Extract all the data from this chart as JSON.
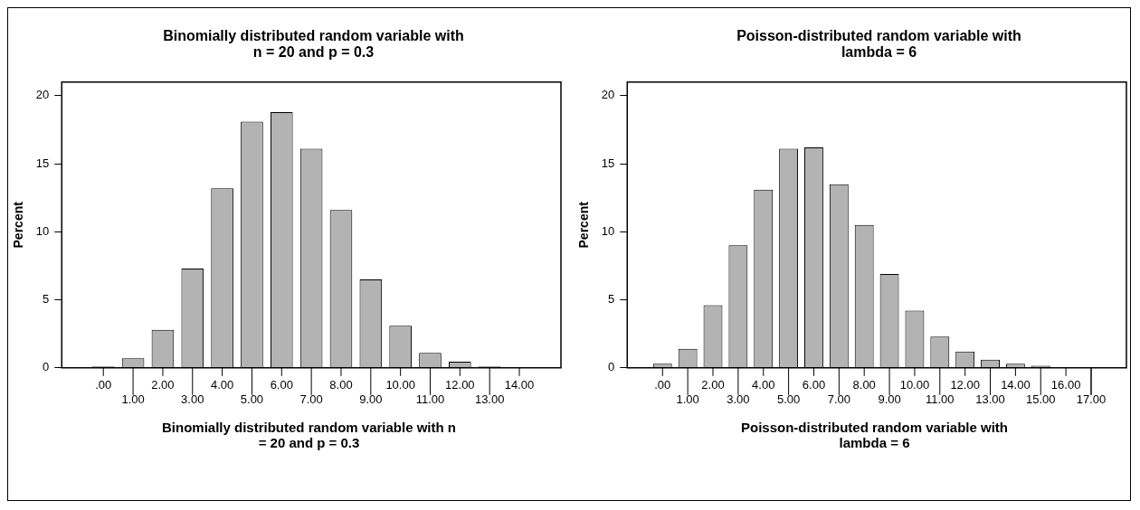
{
  "chart_data": [
    {
      "type": "bar",
      "title": "Binomially distributed random variable with n = 20 and p = 0.3",
      "xlabel": "Binomially distributed random variable with n = 20 and p = 0.3",
      "ylabel": "Percent",
      "categories": [
        ".00",
        "1.00",
        "2.00",
        "3.00",
        "4.00",
        "5.00",
        "6.00",
        "7.00",
        "8.00",
        "9.00",
        "10.00",
        "11.00",
        "12.00",
        "13.00",
        "14.00"
      ],
      "values": [
        0.1,
        0.7,
        2.8,
        7.3,
        13.2,
        18.1,
        18.8,
        16.1,
        11.6,
        6.5,
        3.1,
        1.1,
        0.45,
        0.1,
        0
      ],
      "color": "#b3b3b3",
      "ylim": [
        0,
        21
      ],
      "yticks": [
        0,
        5,
        10,
        15,
        20
      ],
      "grid": false
    },
    {
      "type": "bar",
      "title": "Poisson-distributed random variable with lambda = 6",
      "xlabel": "Poisson-distributed random variable with lambda = 6",
      "ylabel": "Percent",
      "categories": [
        ".00",
        "1.00",
        "2.00",
        "3.00",
        "4.00",
        "5.00",
        "6.00",
        "7.00",
        "8.00",
        "9.00",
        "10.00",
        "11.00",
        "12.00",
        "13.00",
        "14.00",
        "15.00",
        "16.00",
        "17.00"
      ],
      "values": [
        0.3,
        1.4,
        4.6,
        9.0,
        13.1,
        16.1,
        16.2,
        13.5,
        10.5,
        6.9,
        4.2,
        2.3,
        1.2,
        0.6,
        0.3,
        0.15,
        0.05,
        0
      ],
      "color": "#b3b3b3",
      "ylim": [
        0,
        21
      ],
      "yticks": [
        0,
        5,
        10,
        15,
        20
      ],
      "grid": false
    }
  ]
}
